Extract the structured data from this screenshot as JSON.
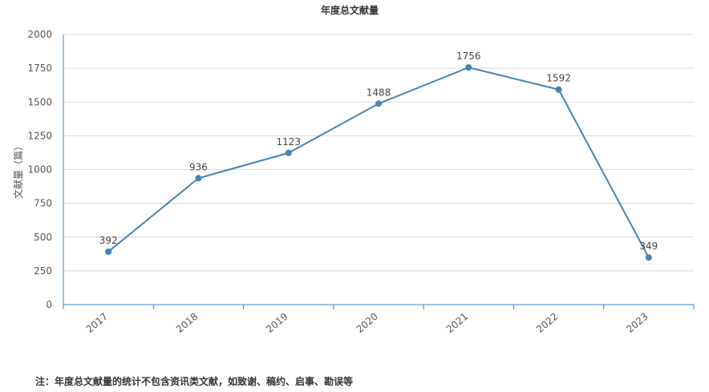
{
  "chart_data": {
    "type": "line",
    "title": "年度总文献量",
    "xlabel": "",
    "ylabel": "文献量（篇）",
    "categories": [
      "2017",
      "2018",
      "2019",
      "2020",
      "2021",
      "2022",
      "2023"
    ],
    "series": [
      {
        "values": [
          392,
          936,
          1123,
          1488,
          1756,
          1592,
          349
        ]
      }
    ],
    "ylim": [
      0,
      2000
    ],
    "yticks": [
      0,
      250,
      500,
      750,
      1000,
      1250,
      1500,
      1750,
      2000
    ],
    "grid": true,
    "legend": "none",
    "line_color": "#4682b4",
    "axis_color": "#3a87c8"
  },
  "footnote": "注：年度总文献量的统计不包含资讯类文献，如致谢、稿约、启事、勘误等"
}
